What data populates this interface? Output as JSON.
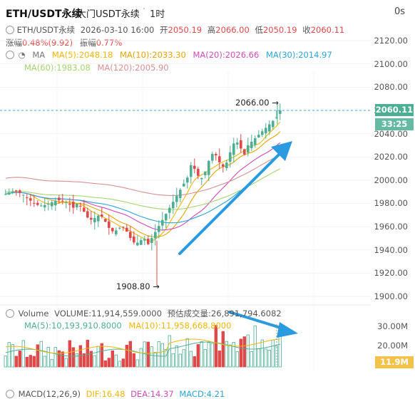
{
  "header": {
    "symbol": "ETH/USDT永续",
    "exchange": "大门USDT永续",
    "timeframe": "1时",
    "countdown": "0s"
  },
  "info": {
    "symbol": "ETH/USDT永续",
    "datetime": "2026-03-10 16:00",
    "open_label": "开",
    "open": "2050.19",
    "high_label": "高",
    "high": "2066.00",
    "low_label": "低",
    "low": "2050.19",
    "close_label": "收",
    "close": "2060.11",
    "change_label": "涨幅",
    "change": "0.48%(9.92)",
    "amp_label": "振幅",
    "amp": "0.77%"
  },
  "ma": {
    "label": "MA",
    "ma5": "MA(5):2048.18",
    "ma10": "MA(10):2033.30",
    "ma20": "MA(20):2026.66",
    "ma30": "MA(30):2014.97",
    "ma60": "MA(60):1983.08",
    "ma120": "MA(120):2005.90"
  },
  "colors": {
    "up": "#4caf95",
    "down": "#e0484a",
    "ma5": "#f2b705",
    "ma10": "#e8a400",
    "ma20": "#d04ab8",
    "ma30": "#2aa5d8",
    "ma60": "#a6d46f",
    "ma120": "#d99090",
    "price_tag": "#4caf95",
    "vol_tag": "#f2b705",
    "arrow": "#2b9be0"
  },
  "price_axis": [
    "2120.00",
    "2100.00",
    "2080.00",
    "2060.00",
    "2040.00",
    "2020.00",
    "2000.00",
    "1980.00",
    "1960.00",
    "1940.00",
    "1920.00",
    "1900.00"
  ],
  "price_tag": "2060.11",
  "time_tag": "33:25",
  "annotations": {
    "high": "2066.00",
    "low": "1908.80"
  },
  "volume": {
    "title": "Volume",
    "value": "VOLUME:11,914,559.0000",
    "est": "预估成交量:26,891,794.6082",
    "ma5": "MA(5):10,193,910.8000",
    "ma10": "MA(10):11,958,668.8000",
    "axis": [
      "30.00M",
      "20.00M"
    ],
    "tag": "11.9M"
  },
  "macd": {
    "label": "MACD(12,26,9)",
    "dif": "DIF:16.48",
    "dea": "DEA:14.37",
    "macd": "MACD:4.21"
  }
}
